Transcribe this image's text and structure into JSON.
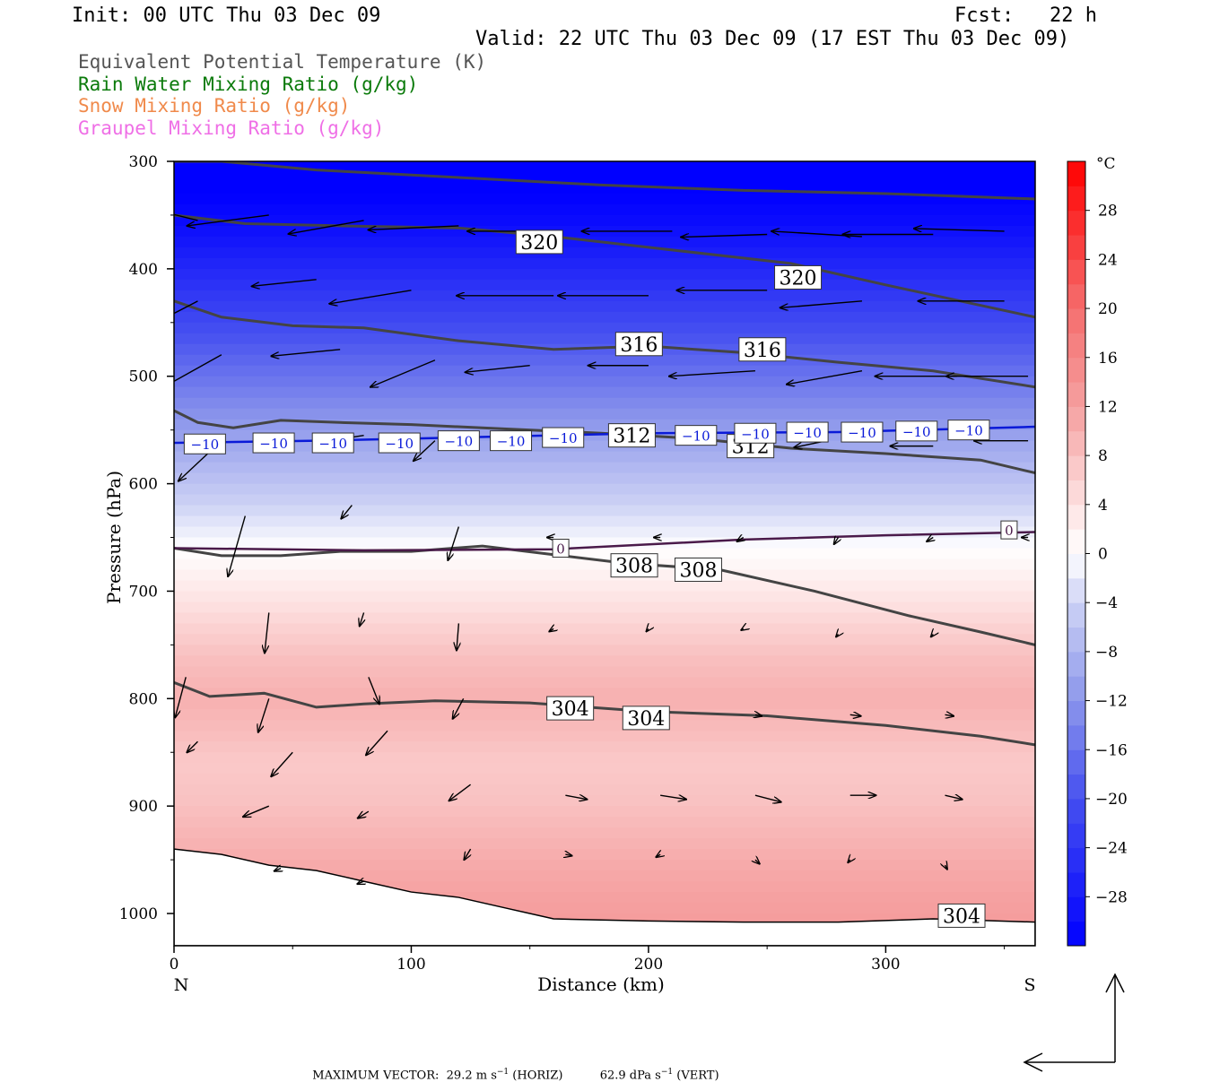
{
  "header": {
    "init": "Init: 00 UTC Thu 03 Dec 09",
    "fcst": "Fcst:   22 h",
    "valid": "Valid: 22 UTC Thu 03 Dec 09 (17 EST Thu 03 Dec 09)"
  },
  "legend": [
    {
      "label": "Equivalent Potential Temperature (K)",
      "color": "#555555"
    },
    {
      "label": "Rain Water Mixing Ratio (g/kg)",
      "color": "#0a7a0a"
    },
    {
      "label": "Snow Mixing Ratio (g/kg)",
      "color": "#f08a4b"
    },
    {
      "label": "Graupel Mixing Ratio (g/kg)",
      "color": "#ef6fe6"
    }
  ],
  "chart_data": {
    "type": "contour-cross-section",
    "xlabel": "Distance (km)",
    "ylabel": "Pressure (hPa)",
    "x_ticks": [
      0,
      100,
      200,
      300
    ],
    "y_ticks": [
      300,
      400,
      500,
      600,
      700,
      800,
      900,
      1000
    ],
    "xlim": [
      0,
      363
    ],
    "ylim": [
      300,
      1030
    ],
    "end_labels": {
      "left": "N",
      "right": "S"
    },
    "colorbar": {
      "unit": "°C",
      "ticks": [
        28,
        24,
        20,
        16,
        12,
        8,
        4,
        0,
        -4,
        -8,
        -12,
        -16,
        -20,
        -24,
        -28
      ],
      "range": [
        -32,
        32
      ]
    },
    "theta_e_contours": [
      {
        "value": 320,
        "points": [
          [
            0,
            350
          ],
          [
            30,
            358
          ],
          [
            70,
            360
          ],
          [
            120,
            362
          ],
          [
            160,
            370
          ],
          [
            200,
            380
          ],
          [
            260,
            395
          ],
          [
            300,
            415
          ],
          [
            363,
            445
          ]
        ]
      },
      {
        "value": 316,
        "points": [
          [
            0,
            430
          ],
          [
            20,
            445
          ],
          [
            50,
            453
          ],
          [
            80,
            455
          ],
          [
            120,
            467
          ],
          [
            160,
            475
          ],
          [
            200,
            472
          ],
          [
            240,
            478
          ],
          [
            280,
            487
          ],
          [
            320,
            495
          ],
          [
            363,
            510
          ]
        ]
      },
      {
        "value": 312,
        "points": [
          [
            0,
            532
          ],
          [
            10,
            543
          ],
          [
            25,
            548
          ],
          [
            45,
            541
          ],
          [
            70,
            543
          ],
          [
            100,
            545
          ],
          [
            140,
            549
          ],
          [
            180,
            553
          ],
          [
            220,
            558
          ],
          [
            260,
            567
          ],
          [
            300,
            572
          ],
          [
            340,
            578
          ],
          [
            363,
            590
          ]
        ]
      },
      {
        "value": 308,
        "points": [
          [
            0,
            660
          ],
          [
            20,
            667
          ],
          [
            45,
            667
          ],
          [
            70,
            663
          ],
          [
            100,
            663
          ],
          [
            130,
            658
          ],
          [
            160,
            666
          ],
          [
            190,
            674
          ],
          [
            230,
            680
          ],
          [
            270,
            700
          ],
          [
            310,
            723
          ],
          [
            340,
            738
          ],
          [
            363,
            750
          ]
        ]
      },
      {
        "value": 304,
        "points": [
          [
            0,
            785
          ],
          [
            15,
            798
          ],
          [
            38,
            795
          ],
          [
            60,
            808
          ],
          [
            80,
            805
          ],
          [
            110,
            802
          ],
          [
            150,
            804
          ],
          [
            200,
            812
          ],
          [
            250,
            816
          ],
          [
            300,
            825
          ],
          [
            340,
            835
          ],
          [
            363,
            843
          ]
        ]
      },
      {
        "value": 320,
        "points": [
          [
            0,
            300
          ],
          [
            20,
            300
          ],
          [
            60,
            308
          ],
          [
            120,
            315
          ],
          [
            180,
            322
          ],
          [
            240,
            327
          ],
          [
            300,
            330
          ],
          [
            363,
            335
          ]
        ]
      }
    ],
    "temperature_contours": [
      {
        "value": -10,
        "points": [
          [
            0,
            562
          ],
          [
            60,
            560
          ],
          [
            120,
            557
          ],
          [
            200,
            553
          ],
          [
            280,
            552
          ],
          [
            363,
            547
          ]
        ]
      },
      {
        "value": 0,
        "points": [
          [
            0,
            660
          ],
          [
            80,
            662
          ],
          [
            160,
            661
          ],
          [
            240,
            652
          ],
          [
            300,
            648
          ],
          [
            363,
            645
          ]
        ]
      }
    ],
    "contour_labels": [
      {
        "text": "320",
        "x": 154,
        "y": 375
      },
      {
        "text": "320",
        "x": 263,
        "y": 408
      },
      {
        "text": "316",
        "x": 196,
        "y": 470
      },
      {
        "text": "316",
        "x": 248,
        "y": 475
      },
      {
        "text": "312",
        "x": 193,
        "y": 555
      },
      {
        "text": "312",
        "x": 243,
        "y": 565
      },
      {
        "text": "308",
        "x": 194,
        "y": 676
      },
      {
        "text": "308",
        "x": 221,
        "y": 680
      },
      {
        "text": "304",
        "x": 167,
        "y": 809
      },
      {
        "text": "304",
        "x": 199,
        "y": 818
      },
      {
        "text": "304",
        "x": 332,
        "y": 1002
      },
      {
        "text": "0",
        "x": 163,
        "y": 660
      },
      {
        "text": "0",
        "x": 352,
        "y": 643
      },
      {
        "text": "−10",
        "x": 13,
        "y": 563
      },
      {
        "text": "−10",
        "x": 42,
        "y": 562
      },
      {
        "text": "−10",
        "x": 67,
        "y": 562
      },
      {
        "text": "−10",
        "x": 95,
        "y": 562
      },
      {
        "text": "−10",
        "x": 120,
        "y": 560
      },
      {
        "text": "−10",
        "x": 142,
        "y": 560
      },
      {
        "text": "−10",
        "x": 164,
        "y": 557
      },
      {
        "text": "−10",
        "x": 220,
        "y": 555
      },
      {
        "text": "−10",
        "x": 245,
        "y": 553
      },
      {
        "text": "−10",
        "x": 267,
        "y": 552
      },
      {
        "text": "−10",
        "x": 290,
        "y": 552
      },
      {
        "text": "−10",
        "x": 313,
        "y": 551
      },
      {
        "text": "−10",
        "x": 335,
        "y": 550
      }
    ],
    "vectors": [
      [
        10,
        355,
        -25,
        10
      ],
      [
        40,
        350,
        -38,
        -8
      ],
      [
        80,
        355,
        -35,
        -10
      ],
      [
        120,
        360,
        -42,
        -3
      ],
      [
        160,
        365,
        -40,
        0
      ],
      [
        210,
        365,
        -42,
        0
      ],
      [
        250,
        368,
        -40,
        -2
      ],
      [
        290,
        370,
        -42,
        4
      ],
      [
        320,
        368,
        -42,
        0
      ],
      [
        350,
        365,
        -42,
        2
      ],
      [
        10,
        430,
        -30,
        -25
      ],
      [
        60,
        410,
        -30,
        -5
      ],
      [
        100,
        420,
        -38,
        -10
      ],
      [
        160,
        425,
        -45,
        0
      ],
      [
        200,
        425,
        -42,
        0
      ],
      [
        250,
        420,
        -42,
        0
      ],
      [
        290,
        430,
        -38,
        -5
      ],
      [
        350,
        430,
        -40,
        0
      ],
      [
        20,
        480,
        -28,
        -25
      ],
      [
        70,
        475,
        -32,
        -5
      ],
      [
        110,
        485,
        -30,
        -20
      ],
      [
        150,
        490,
        -30,
        -5
      ],
      [
        200,
        490,
        -28,
        0
      ],
      [
        245,
        495,
        -40,
        -4
      ],
      [
        290,
        495,
        -35,
        -10
      ],
      [
        330,
        500,
        -38,
        0
      ],
      [
        360,
        500,
        -38,
        0
      ],
      [
        20,
        560,
        -20,
        -30
      ],
      [
        80,
        555,
        -20,
        -5
      ],
      [
        110,
        560,
        -10,
        -15
      ],
      [
        275,
        560,
        -15,
        -5
      ],
      [
        320,
        565,
        -20,
        0
      ],
      [
        360,
        560,
        -25,
        0
      ],
      [
        30,
        630,
        -8,
        -45
      ],
      [
        75,
        620,
        -5,
        -10
      ],
      [
        120,
        640,
        -5,
        -25
      ],
      [
        160,
        650,
        -3,
        0
      ],
      [
        205,
        650,
        -3,
        0
      ],
      [
        240,
        650,
        -3,
        -3
      ],
      [
        280,
        650,
        -2,
        -5
      ],
      [
        320,
        650,
        -3,
        -3
      ],
      [
        360,
        650,
        -3,
        0
      ],
      [
        40,
        720,
        -2,
        -30
      ],
      [
        80,
        720,
        -2,
        -10
      ],
      [
        120,
        730,
        -1,
        -20
      ],
      [
        160,
        735,
        -2,
        -2
      ],
      [
        200,
        735,
        -1,
        -2
      ],
      [
        240,
        735,
        -1,
        -1
      ],
      [
        280,
        740,
        -1,
        -2
      ],
      [
        320,
        740,
        -1,
        -2
      ],
      [
        5,
        780,
        -5,
        -30
      ],
      [
        40,
        800,
        -5,
        -25
      ],
      [
        82,
        780,
        5,
        -20
      ],
      [
        122,
        800,
        -5,
        -15
      ],
      [
        162,
        815,
        2,
        -1
      ],
      [
        205,
        815,
        3,
        -1
      ],
      [
        245,
        815,
        3,
        -1
      ],
      [
        285,
        815,
        5,
        -1
      ],
      [
        325,
        815,
        4,
        -1
      ],
      [
        10,
        840,
        -5,
        -8
      ],
      [
        50,
        850,
        -10,
        -18
      ],
      [
        90,
        830,
        -10,
        -18
      ],
      [
        125,
        880,
        -10,
        -12
      ],
      [
        165,
        890,
        10,
        -3
      ],
      [
        205,
        890,
        12,
        -3
      ],
      [
        245,
        890,
        12,
        -5
      ],
      [
        285,
        890,
        12,
        0
      ],
      [
        325,
        890,
        8,
        -3
      ],
      [
        40,
        900,
        -12,
        -8
      ],
      [
        82,
        905,
        -5,
        -5
      ],
      [
        125,
        940,
        -3,
        -8
      ],
      [
        165,
        945,
        3,
        -1
      ],
      [
        205,
        945,
        -2,
        -2
      ],
      [
        245,
        950,
        2,
        -3
      ],
      [
        285,
        950,
        -1,
        -2
      ],
      [
        325,
        955,
        1,
        -3
      ],
      [
        45,
        958,
        -3,
        -2
      ],
      [
        80,
        970,
        -3,
        -2
      ]
    ],
    "terrain_surface": [
      [
        0,
        940
      ],
      [
        20,
        945
      ],
      [
        40,
        955
      ],
      [
        60,
        960
      ],
      [
        80,
        970
      ],
      [
        100,
        980
      ],
      [
        120,
        985
      ],
      [
        140,
        995
      ],
      [
        160,
        1005
      ],
      [
        200,
        1007
      ],
      [
        240,
        1008
      ],
      [
        280,
        1008
      ],
      [
        320,
        1005
      ],
      [
        363,
        1008
      ]
    ],
    "max_vector": {
      "label": "MAXIMUM VECTOR:",
      "horiz": "29.2 m s",
      "horiz_exp": "−1",
      "horiz_tag": "(HORIZ)",
      "vert": "62.9 dPa s",
      "vert_exp": "−1",
      "vert_tag": "(VERT)"
    }
  }
}
